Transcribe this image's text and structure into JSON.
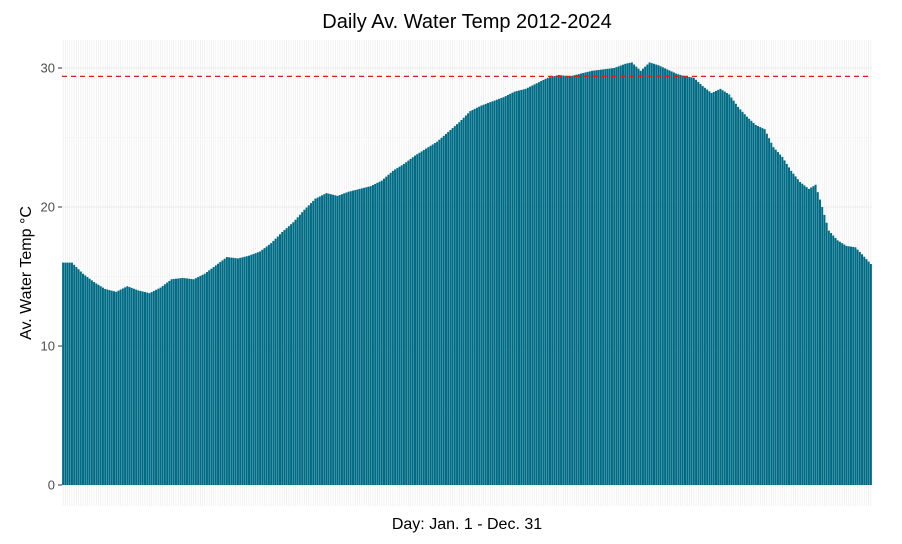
{
  "chart_data": {
    "type": "bar",
    "title": "Daily Av. Water Temp 2012-2024",
    "xlabel": "Day: Jan. 1 - Dec. 31",
    "ylabel": "Av. Water Temp °C",
    "ylim": [
      0,
      32
    ],
    "yticks": [
      "0",
      "10",
      "20",
      "30"
    ],
    "grid": true,
    "legend": "none",
    "reference_line": {
      "y": 29.4,
      "style": "dashed",
      "color": "#e41a1c"
    },
    "bar_color": "#006b84",
    "categories_count": 366,
    "control_points": [
      [
        1,
        16.0
      ],
      [
        5,
        16.0
      ],
      [
        10,
        15.2
      ],
      [
        15,
        14.6
      ],
      [
        20,
        14.1
      ],
      [
        25,
        13.9
      ],
      [
        30,
        14.3
      ],
      [
        35,
        14.0
      ],
      [
        40,
        13.8
      ],
      [
        45,
        14.2
      ],
      [
        50,
        14.8
      ],
      [
        55,
        14.9
      ],
      [
        60,
        14.8
      ],
      [
        65,
        15.2
      ],
      [
        70,
        15.8
      ],
      [
        75,
        16.4
      ],
      [
        80,
        16.3
      ],
      [
        85,
        16.5
      ],
      [
        90,
        16.8
      ],
      [
        95,
        17.4
      ],
      [
        100,
        18.2
      ],
      [
        105,
        18.9
      ],
      [
        110,
        19.8
      ],
      [
        115,
        20.6
      ],
      [
        120,
        21.0
      ],
      [
        125,
        20.8
      ],
      [
        130,
        21.1
      ],
      [
        135,
        21.3
      ],
      [
        140,
        21.5
      ],
      [
        145,
        21.9
      ],
      [
        150,
        22.6
      ],
      [
        155,
        23.1
      ],
      [
        160,
        23.7
      ],
      [
        165,
        24.2
      ],
      [
        170,
        24.7
      ],
      [
        175,
        25.4
      ],
      [
        180,
        26.1
      ],
      [
        185,
        26.9
      ],
      [
        190,
        27.3
      ],
      [
        195,
        27.6
      ],
      [
        200,
        27.9
      ],
      [
        205,
        28.3
      ],
      [
        210,
        28.5
      ],
      [
        215,
        28.9
      ],
      [
        220,
        29.3
      ],
      [
        225,
        29.5
      ],
      [
        230,
        29.4
      ],
      [
        235,
        29.6
      ],
      [
        240,
        29.8
      ],
      [
        245,
        29.9
      ],
      [
        250,
        30.0
      ],
      [
        255,
        30.3
      ],
      [
        258,
        30.4
      ],
      [
        262,
        29.8
      ],
      [
        266,
        30.4
      ],
      [
        270,
        30.2
      ],
      [
        274,
        29.9
      ],
      [
        278,
        29.6
      ],
      [
        282,
        29.4
      ],
      [
        286,
        29.3
      ],
      [
        290,
        28.7
      ],
      [
        294,
        28.2
      ],
      [
        298,
        28.5
      ],
      [
        302,
        28.1
      ],
      [
        306,
        27.2
      ],
      [
        310,
        26.5
      ],
      [
        314,
        25.9
      ],
      [
        318,
        25.6
      ],
      [
        322,
        24.3
      ],
      [
        326,
        23.6
      ],
      [
        330,
        22.6
      ],
      [
        334,
        21.8
      ],
      [
        338,
        21.3
      ],
      [
        341,
        21.6
      ],
      [
        344,
        20.0
      ],
      [
        347,
        18.3
      ],
      [
        351,
        17.6
      ],
      [
        355,
        17.2
      ],
      [
        359,
        17.1
      ],
      [
        362,
        16.6
      ],
      [
        366,
        15.9
      ]
    ]
  }
}
